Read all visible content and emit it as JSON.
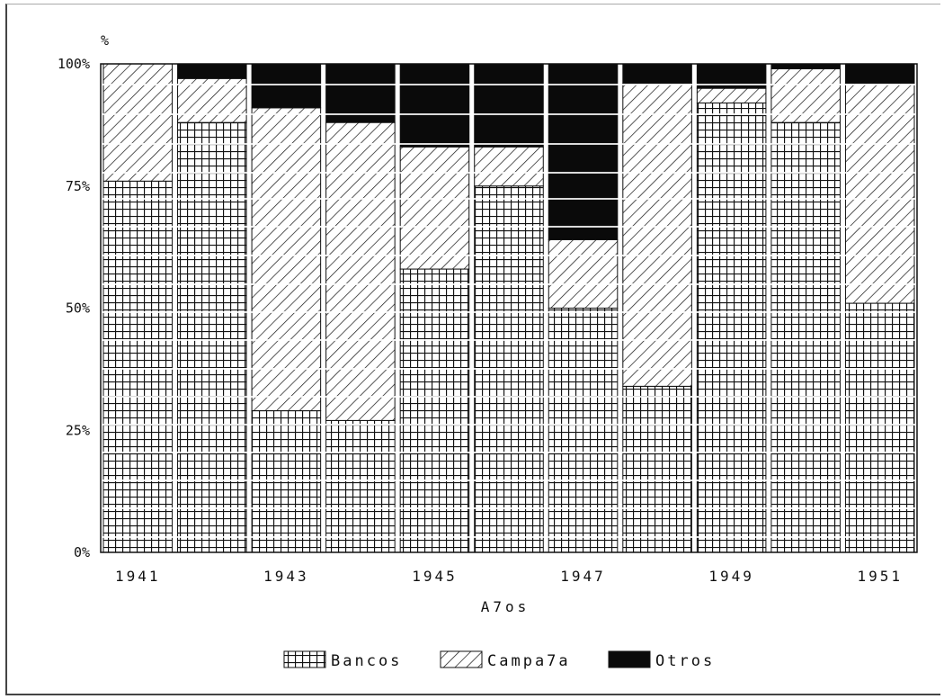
{
  "chart_data": {
    "type": "bar",
    "stacked": true,
    "percent": true,
    "ylabel": "%",
    "xlabel": "A7os",
    "ylim": [
      0,
      100
    ],
    "yticks": [
      "0%",
      "25%",
      "50%",
      "75%",
      "100%"
    ],
    "categories": [
      "1941",
      "1942",
      "1943",
      "1944",
      "1945",
      "1946",
      "1947",
      "1948",
      "1949",
      "1950",
      "1951"
    ],
    "tick_labels_shown": [
      "1941",
      "1943",
      "1945",
      "1947",
      "1949",
      "1951"
    ],
    "series": [
      {
        "name": "Bancos",
        "pattern": "grid",
        "values": [
          76,
          88,
          29,
          27,
          58,
          75,
          50,
          34,
          92,
          88,
          51
        ]
      },
      {
        "name": "Campa7a",
        "pattern": "hatch",
        "values": [
          24,
          9,
          62,
          61,
          25,
          8,
          14,
          62,
          3,
          11,
          45
        ]
      },
      {
        "name": "Otros",
        "pattern": "solid",
        "values": [
          0,
          3,
          9,
          12,
          17,
          17,
          36,
          4,
          5,
          1,
          4
        ]
      }
    ],
    "legend_position": "bottom",
    "grid": true
  }
}
